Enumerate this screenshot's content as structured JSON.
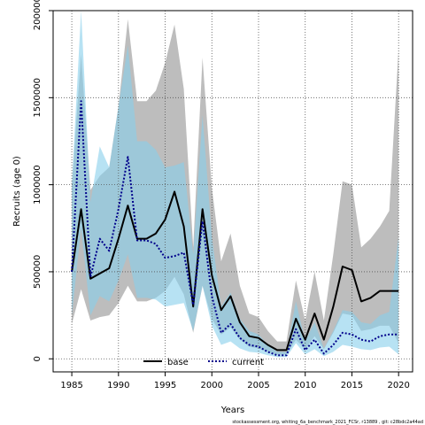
{
  "chart_data": {
    "type": "line",
    "title": "",
    "xlabel": "Years",
    "ylabel": "Recruits (age 0)",
    "xlim": [
      1983,
      2021.5
    ],
    "ylim": [
      -75000,
      2000000
    ],
    "xticks": [
      1985,
      1990,
      1995,
      2000,
      2005,
      2010,
      2015,
      2020
    ],
    "yticks": [
      0,
      500000,
      1000000,
      1500000,
      2000000
    ],
    "ytick_labels": [
      "0",
      "500000",
      "1000000",
      "1500000",
      "2000000"
    ],
    "grid": true,
    "legend": {
      "placement": "bottom-center",
      "entries": [
        "base",
        "current"
      ]
    },
    "footer": "stockassessment.org, whiting_6a_benchmark_2021_FCSr, r13889 , git: c28bdc2a44ad",
    "years": [
      1985,
      1986,
      1987,
      1988,
      1989,
      1990,
      1991,
      1992,
      1993,
      1994,
      1995,
      1996,
      1997,
      1998,
      1999,
      2000,
      2001,
      2002,
      2003,
      2004,
      2005,
      2006,
      2007,
      2008,
      2009,
      2010,
      2011,
      2012,
      2013,
      2014,
      2015,
      2016,
      2017,
      2018,
      2019,
      2020
    ],
    "series": [
      {
        "name": "base",
        "color": "#000000",
        "line_style": "solid",
        "band_color": "#bdbdbd",
        "values": [
          500000,
          860000,
          460000,
          490000,
          520000,
          690000,
          880000,
          690000,
          690000,
          720000,
          800000,
          960000,
          760000,
          300000,
          860000,
          480000,
          280000,
          360000,
          210000,
          130000,
          120000,
          80000,
          50000,
          50000,
          230000,
          110000,
          260000,
          110000,
          300000,
          530000,
          510000,
          330000,
          350000,
          390000,
          390000,
          390000
        ],
        "lower": [
          200000,
          400000,
          220000,
          240000,
          250000,
          320000,
          420000,
          330000,
          330000,
          350000,
          390000,
          470000,
          370000,
          150000,
          420000,
          230000,
          140000,
          180000,
          110000,
          70000,
          60000,
          40000,
          25000,
          25000,
          110000,
          55000,
          130000,
          55000,
          150000,
          260000,
          250000,
          160000,
          170000,
          190000,
          190000,
          90000
        ],
        "upper": [
          1000000,
          1750000,
          970000,
          1050000,
          1100000,
          1450000,
          1950000,
          1480000,
          1480000,
          1540000,
          1700000,
          1920000,
          1550000,
          640000,
          1730000,
          980000,
          560000,
          720000,
          420000,
          260000,
          240000,
          160000,
          100000,
          100000,
          450000,
          220000,
          500000,
          220000,
          600000,
          1020000,
          1000000,
          640000,
          690000,
          760000,
          850000,
          1780000
        ]
      },
      {
        "name": "current",
        "color": "#00008b",
        "line_style": "dotted",
        "band_color": "#87ceeb",
        "values": [
          500000,
          1480000,
          470000,
          690000,
          620000,
          860000,
          1160000,
          680000,
          680000,
          660000,
          580000,
          590000,
          610000,
          310000,
          790000,
          360000,
          150000,
          200000,
          120000,
          80000,
          70000,
          40000,
          20000,
          20000,
          170000,
          50000,
          110000,
          30000,
          80000,
          150000,
          140000,
          110000,
          100000,
          130000,
          140000,
          140000
        ],
        "lower": [
          250000,
          750000,
          250000,
          360000,
          330000,
          450000,
          600000,
          350000,
          350000,
          340000,
          300000,
          310000,
          320000,
          160000,
          420000,
          190000,
          80000,
          100000,
          60000,
          40000,
          35000,
          20000,
          10000,
          10000,
          90000,
          25000,
          55000,
          15000,
          40000,
          80000,
          70000,
          55000,
          50000,
          65000,
          70000,
          25000
        ],
        "upper": [
          1000000,
          2000000,
          900000,
          1220000,
          1100000,
          1450000,
          1800000,
          1250000,
          1250000,
          1200000,
          1100000,
          1110000,
          1130000,
          600000,
          1400000,
          700000,
          300000,
          380000,
          230000,
          160000,
          140000,
          80000,
          40000,
          40000,
          330000,
          100000,
          210000,
          60000,
          160000,
          280000,
          270000,
          210000,
          200000,
          250000,
          270000,
          700000
        ]
      }
    ]
  }
}
